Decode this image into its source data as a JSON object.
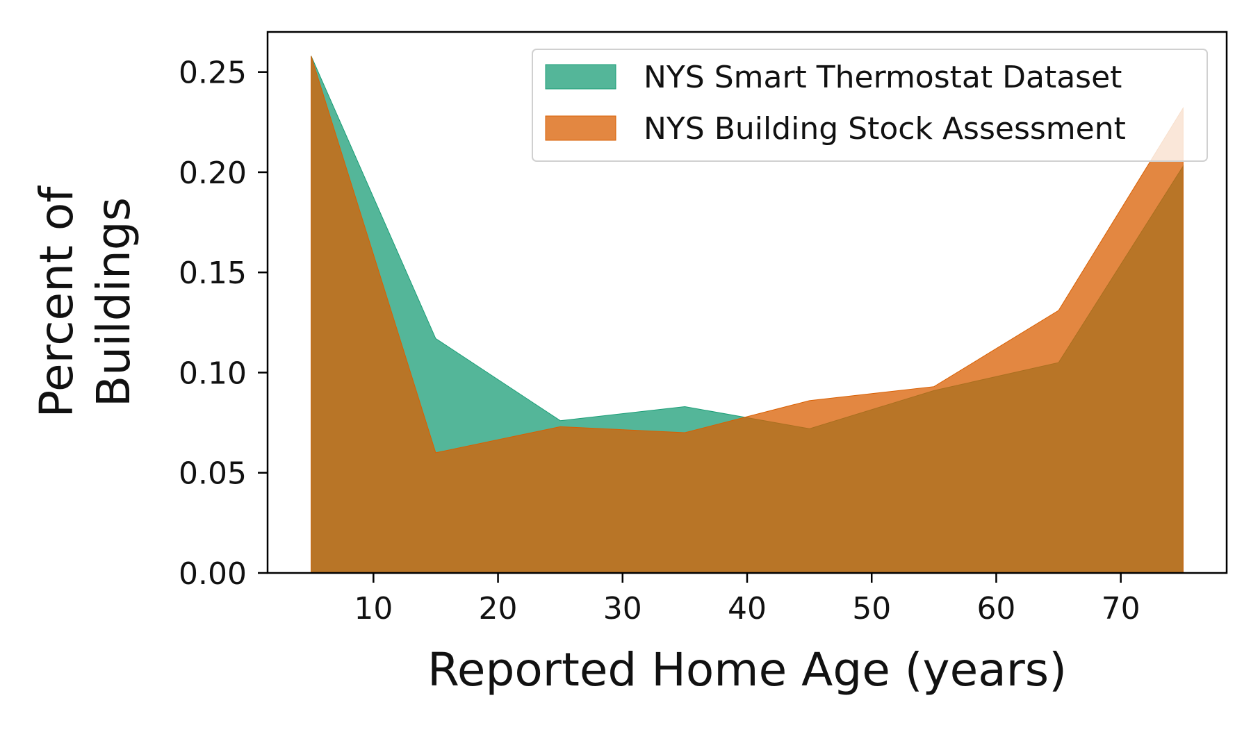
{
  "chart_data": {
    "type": "area",
    "title": "",
    "xlabel": "Reported Home Age (years)",
    "ylabel_lines": [
      "Percent of",
      "Buildings"
    ],
    "x": [
      5,
      15,
      25,
      35,
      45,
      55,
      65,
      75
    ],
    "xlim": [
      1.5,
      78.5
    ],
    "ylim": [
      0.0,
      0.27
    ],
    "xticks": [
      10,
      20,
      30,
      40,
      50,
      60,
      70
    ],
    "yticks": [
      0.0,
      0.05,
      0.1,
      0.15,
      0.2,
      0.25
    ],
    "ytick_labels": [
      "0.00",
      "0.05",
      "0.10",
      "0.15",
      "0.20",
      "0.25"
    ],
    "grid": false,
    "legend_position": "top-right",
    "series": [
      {
        "name": "NYS Smart Thermostat Dataset",
        "color": "#1b9e77",
        "opacity": 0.75,
        "values": [
          0.258,
          0.117,
          0.076,
          0.083,
          0.072,
          0.091,
          0.105,
          0.203
        ]
      },
      {
        "name": "NYS Building Stock Assessment",
        "color": "#d95f02",
        "opacity": 0.75,
        "values": [
          0.258,
          0.06,
          0.073,
          0.07,
          0.086,
          0.093,
          0.131,
          0.232
        ]
      }
    ]
  }
}
